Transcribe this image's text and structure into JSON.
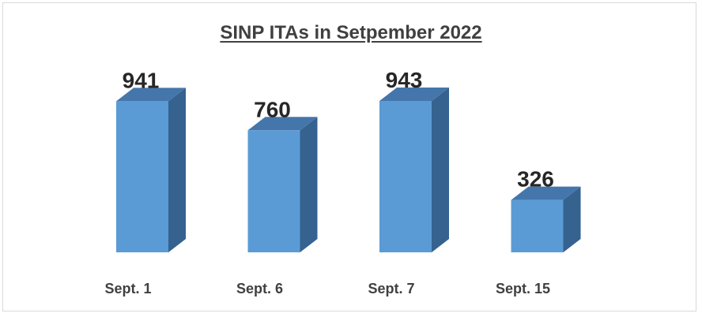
{
  "chart_data": {
    "type": "bar",
    "title": "SINP ITAs in Setpember 2022",
    "categories": [
      "Sept. 1",
      "Sept. 6",
      "Sept. 7",
      "Sept. 15"
    ],
    "values": [
      941,
      760,
      943,
      326
    ],
    "data_labels": [
      "941",
      "760",
      "943",
      "326"
    ],
    "xlabel": "",
    "ylabel": "",
    "ylim": [
      0,
      1000
    ],
    "grid": false,
    "legend": "none",
    "style": "3d-column",
    "colors": {
      "front": "#5b9bd5",
      "top": "#4576ab",
      "side": "#35628f"
    }
  }
}
